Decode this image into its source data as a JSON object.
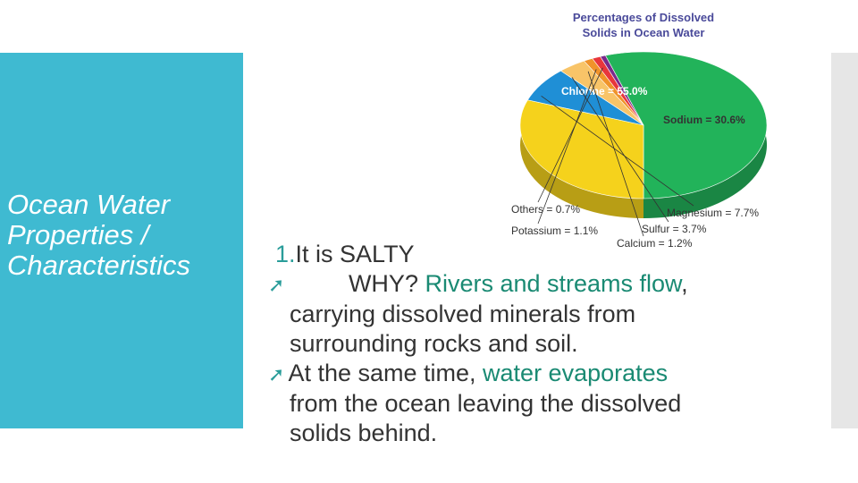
{
  "side": {
    "title_line1": "Ocean Water",
    "title_line2": "Properties /",
    "title_line3": "Characteristics"
  },
  "body": {
    "point_number": "1.",
    "point_text": "It is SALTY",
    "bullet_icon": "arrow-bullet-icon",
    "line2_pre": "WHY?  ",
    "line2_green": "Rivers and streams flow",
    "line2_post": ",",
    "line3": "carrying dissolved minerals from",
    "line4": "surrounding rocks and soil.",
    "line5_pre": "At the same time, ",
    "line5_green": "water evaporates",
    "line6": "from the ocean leaving the dissolved",
    "line7": "solids behind."
  },
  "colors": {
    "panel": "#3fbad1",
    "accent_text": "#1a8a73"
  },
  "chart_data": {
    "type": "pie",
    "title": "Percentages of Dissolved Solids in Ocean Water",
    "title_line1": "Percentages of Dissolved",
    "title_line2": "Solids in Ocean Water",
    "slices": [
      {
        "label": "Chlorine = 55.0%",
        "value": 55.0,
        "color": "#22b35a"
      },
      {
        "label": "Sodium = 30.6%",
        "value": 30.6,
        "color": "#f5d21c"
      },
      {
        "label": "Magnesium = 7.7%",
        "value": 7.7,
        "color": "#1f8fd6"
      },
      {
        "label": "Sulfur = 3.7%",
        "value": 3.7,
        "color": "#f8c468"
      },
      {
        "label": "Calcium = 1.2%",
        "value": 1.2,
        "color": "#f0932a"
      },
      {
        "label": "Potassium = 1.1%",
        "value": 1.1,
        "color": "#e8363b"
      },
      {
        "label": "Others = 0.7%",
        "value": 0.7,
        "color": "#7a2a8c"
      }
    ]
  }
}
